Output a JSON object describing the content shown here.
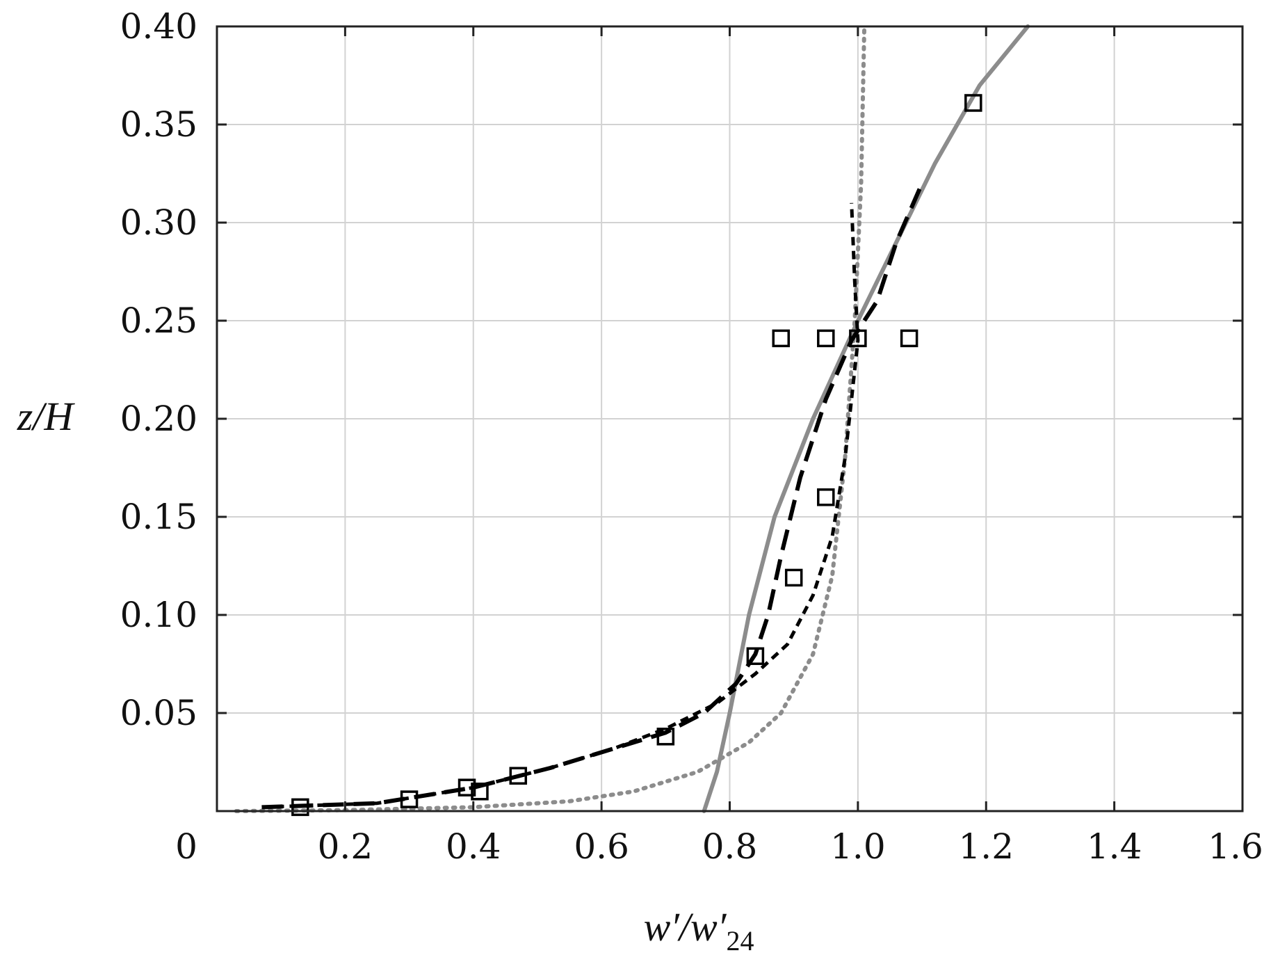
{
  "chart_data": {
    "type": "line",
    "title": "",
    "xlabel": {
      "main": "w′/w′",
      "sub": "24"
    },
    "ylabel": "z/H",
    "xlim": [
      0,
      1.6
    ],
    "ylim": [
      0,
      0.4
    ],
    "grid": true,
    "legend": "none",
    "x_ticks": [
      {
        "value": 0,
        "label": "0"
      },
      {
        "value": 0.2,
        "label": "0.2"
      },
      {
        "value": 0.4,
        "label": "0.4"
      },
      {
        "value": 0.6,
        "label": "0.6"
      },
      {
        "value": 0.8,
        "label": "0.8"
      },
      {
        "value": 1.0,
        "label": "1.0"
      },
      {
        "value": 1.2,
        "label": "1.2"
      },
      {
        "value": 1.4,
        "label": "1.4"
      },
      {
        "value": 1.6,
        "label": "1.6"
      }
    ],
    "y_ticks": [
      {
        "value": 0.05,
        "label": "0.05"
      },
      {
        "value": 0.1,
        "label": "0.10"
      },
      {
        "value": 0.15,
        "label": "0.15"
      },
      {
        "value": 0.2,
        "label": "0.20"
      },
      {
        "value": 0.25,
        "label": "0.25"
      },
      {
        "value": 0.3,
        "label": "0.30"
      },
      {
        "value": 0.35,
        "label": "0.35"
      },
      {
        "value": 0.4,
        "label": "0.40"
      }
    ],
    "series": [
      {
        "style": "solid-gray",
        "color": "#8c8c8c",
        "points": [
          [
            0.76,
            0.0
          ],
          [
            0.78,
            0.02
          ],
          [
            0.8,
            0.05
          ],
          [
            0.83,
            0.1
          ],
          [
            0.87,
            0.15
          ],
          [
            0.93,
            0.2
          ],
          [
            1.0,
            0.25
          ],
          [
            1.06,
            0.29
          ],
          [
            1.12,
            0.33
          ],
          [
            1.19,
            0.37
          ],
          [
            1.265,
            0.4
          ]
        ]
      },
      {
        "style": "dotted-gray",
        "color": "#8c8c8c",
        "points": [
          [
            0.03,
            0.0
          ],
          [
            0.2,
            0.0005
          ],
          [
            0.4,
            0.002
          ],
          [
            0.55,
            0.005
          ],
          [
            0.65,
            0.01
          ],
          [
            0.75,
            0.02
          ],
          [
            0.83,
            0.035
          ],
          [
            0.88,
            0.05
          ],
          [
            0.93,
            0.08
          ],
          [
            0.96,
            0.12
          ],
          [
            0.98,
            0.18
          ],
          [
            0.995,
            0.25
          ],
          [
            1.005,
            0.32
          ],
          [
            1.01,
            0.4
          ]
        ]
      },
      {
        "style": "long-dash-black",
        "color": "#000000",
        "points": [
          [
            0.07,
            0.002
          ],
          [
            0.25,
            0.004
          ],
          [
            0.4,
            0.012
          ],
          [
            0.52,
            0.022
          ],
          [
            0.62,
            0.032
          ],
          [
            0.7,
            0.04
          ],
          [
            0.76,
            0.05
          ],
          [
            0.81,
            0.065
          ],
          [
            0.84,
            0.08
          ],
          [
            0.86,
            0.1
          ],
          [
            0.88,
            0.13
          ],
          [
            0.91,
            0.17
          ],
          [
            0.95,
            0.21
          ],
          [
            0.99,
            0.24
          ],
          [
            1.03,
            0.26
          ],
          [
            1.06,
            0.29
          ],
          [
            1.1,
            0.32
          ]
        ]
      },
      {
        "style": "short-dash-black",
        "color": "#000000",
        "points": [
          [
            0.07,
            0.002
          ],
          [
            0.25,
            0.004
          ],
          [
            0.4,
            0.012
          ],
          [
            0.52,
            0.022
          ],
          [
            0.62,
            0.032
          ],
          [
            0.7,
            0.042
          ],
          [
            0.78,
            0.055
          ],
          [
            0.84,
            0.07
          ],
          [
            0.89,
            0.085
          ],
          [
            0.93,
            0.11
          ],
          [
            0.96,
            0.14
          ],
          [
            0.98,
            0.18
          ],
          [
            0.99,
            0.21
          ],
          [
            1.0,
            0.24
          ],
          [
            0.995,
            0.27
          ],
          [
            0.99,
            0.31
          ]
        ]
      },
      {
        "style": "square-markers",
        "color": "#000000",
        "points": [
          [
            0.13,
            0.002
          ],
          [
            0.3,
            0.006
          ],
          [
            0.39,
            0.012
          ],
          [
            0.41,
            0.01
          ],
          [
            0.47,
            0.018
          ],
          [
            0.7,
            0.038
          ],
          [
            0.84,
            0.079
          ],
          [
            0.9,
            0.119
          ],
          [
            0.95,
            0.16
          ],
          [
            0.88,
            0.241
          ],
          [
            0.95,
            0.241
          ],
          [
            1.0,
            0.241
          ],
          [
            1.08,
            0.241
          ],
          [
            1.18,
            0.361
          ]
        ]
      }
    ]
  }
}
